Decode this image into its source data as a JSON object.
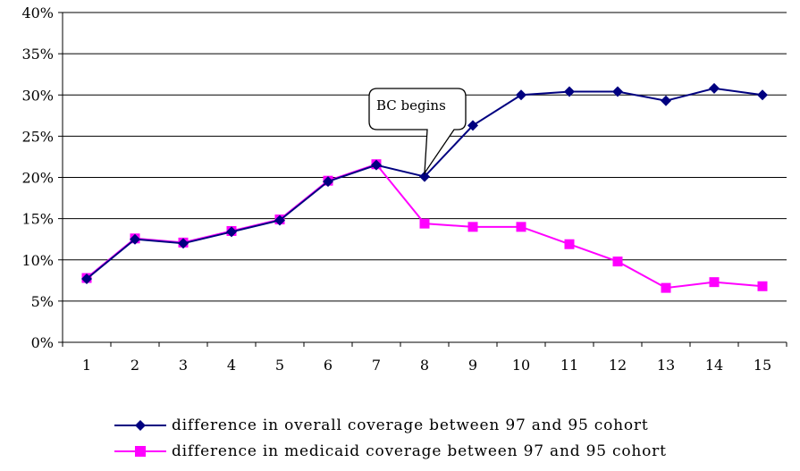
{
  "chart_data": {
    "type": "line",
    "categories": [
      "1",
      "2",
      "3",
      "4",
      "5",
      "6",
      "7",
      "8",
      "9",
      "10",
      "11",
      "12",
      "13",
      "14",
      "15"
    ],
    "y_ticks": [
      "0%",
      "5%",
      "10%",
      "15%",
      "20%",
      "25%",
      "30%",
      "35%",
      "40%"
    ],
    "ylim": [
      0,
      40
    ],
    "grid": "horizontal",
    "legend_position": "bottom",
    "series": [
      {
        "name": "difference in overall coverage between 97 and 95 cohort",
        "color": "#000080",
        "marker": "diamond",
        "values": [
          7.7,
          12.5,
          12.0,
          13.4,
          14.8,
          19.5,
          21.5,
          20.1,
          26.3,
          30.0,
          30.4,
          30.4,
          29.3,
          30.8,
          30.0
        ]
      },
      {
        "name": "difference in medicaid coverage between 97 and 95 cohort",
        "color": "#FF00FF",
        "marker": "square",
        "values": [
          7.8,
          12.6,
          12.1,
          13.5,
          14.9,
          19.6,
          21.6,
          14.4,
          14.0,
          14.0,
          11.9,
          9.8,
          6.6,
          7.3,
          6.8
        ]
      }
    ],
    "annotations": [
      {
        "text": "BC begins",
        "category": "8"
      }
    ]
  }
}
